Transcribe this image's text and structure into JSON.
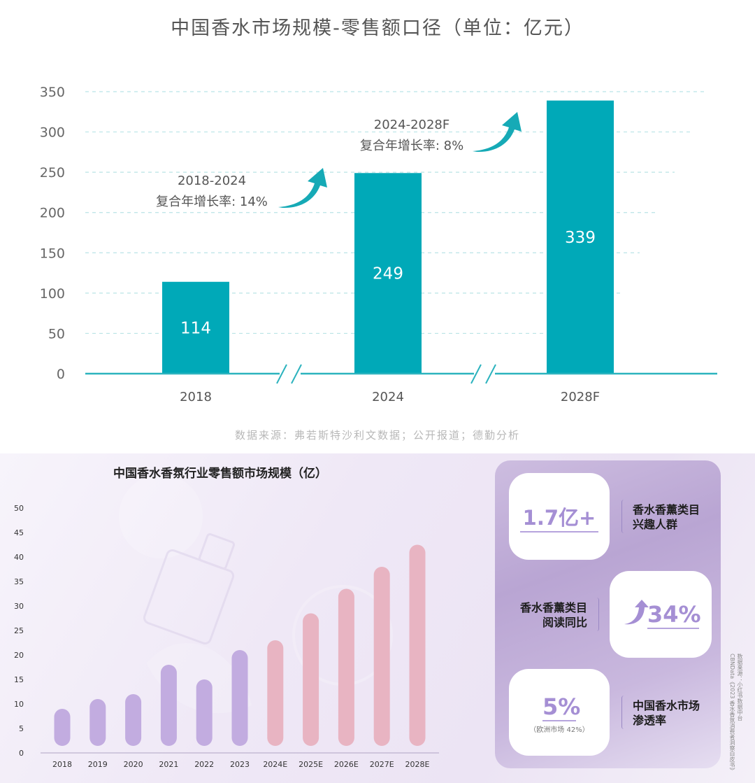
{
  "colors": {
    "teal": "#00a9b8",
    "teal_line": "#2cb3be",
    "purple_bar": "#c2ace0",
    "pink_bar": "#e8b4c2",
    "accent_text": "#a58fd4"
  },
  "top": {
    "title": "中国香水市场规模-零售额口径（单位：亿元）",
    "source": "数据来源：弗若斯特沙利文数据；公开报道；德勤分析",
    "annotations": [
      {
        "range": "2018-2024",
        "text": "复合年增长率: 14%"
      },
      {
        "range": "2024-2028F",
        "text": "复合年增长率: 8%"
      }
    ]
  },
  "bottom": {
    "title": "中国香水香氛行业零售额市场规模（亿）",
    "stats": [
      {
        "value": "1.7亿+",
        "label_lines": [
          "香水香薰类目",
          "兴趣人群"
        ]
      },
      {
        "value": "34%",
        "label_lines": [
          "香水香薰类目",
          "阅读同比"
        ]
      },
      {
        "value": "5%",
        "note": "（欧洲市场 42%）",
        "label_lines": [
          "中国香水市场",
          "渗透率"
        ]
      }
    ],
    "side_source_lines": [
      "数据来源：小红书数据中台",
      "CBNData《2023 香水香氛消费者洞察白皮书》"
    ]
  },
  "chart_data": [
    {
      "type": "bar",
      "title": "中国香水市场规模-零售额口径（单位：亿元）",
      "categories": [
        "2018",
        "2024",
        "2028F"
      ],
      "values": [
        114,
        249,
        339
      ],
      "ylim": [
        0,
        350
      ],
      "yticks": [
        0,
        50,
        100,
        150,
        200,
        250,
        300,
        350
      ],
      "grid": true,
      "annotations": [
        "2018-2024 复合年增长率: 14%",
        "2024-2028F 复合年增长率: 8%"
      ]
    },
    {
      "type": "bar",
      "title": "中国香水香氛行业零售额市场规模（亿）",
      "categories": [
        "2018",
        "2019",
        "2020",
        "2021",
        "2022",
        "2023",
        "2024E",
        "2025E",
        "2026E",
        "2027E",
        "2028E"
      ],
      "values": [
        9,
        11,
        12,
        18,
        15,
        21,
        23,
        28.5,
        33.5,
        38,
        42.5
      ],
      "ylim": [
        0,
        50
      ],
      "yticks": [
        0,
        5,
        10,
        15,
        20,
        25,
        30,
        35,
        40,
        45,
        50
      ],
      "grid": false,
      "estimated_from_index": 6
    }
  ]
}
